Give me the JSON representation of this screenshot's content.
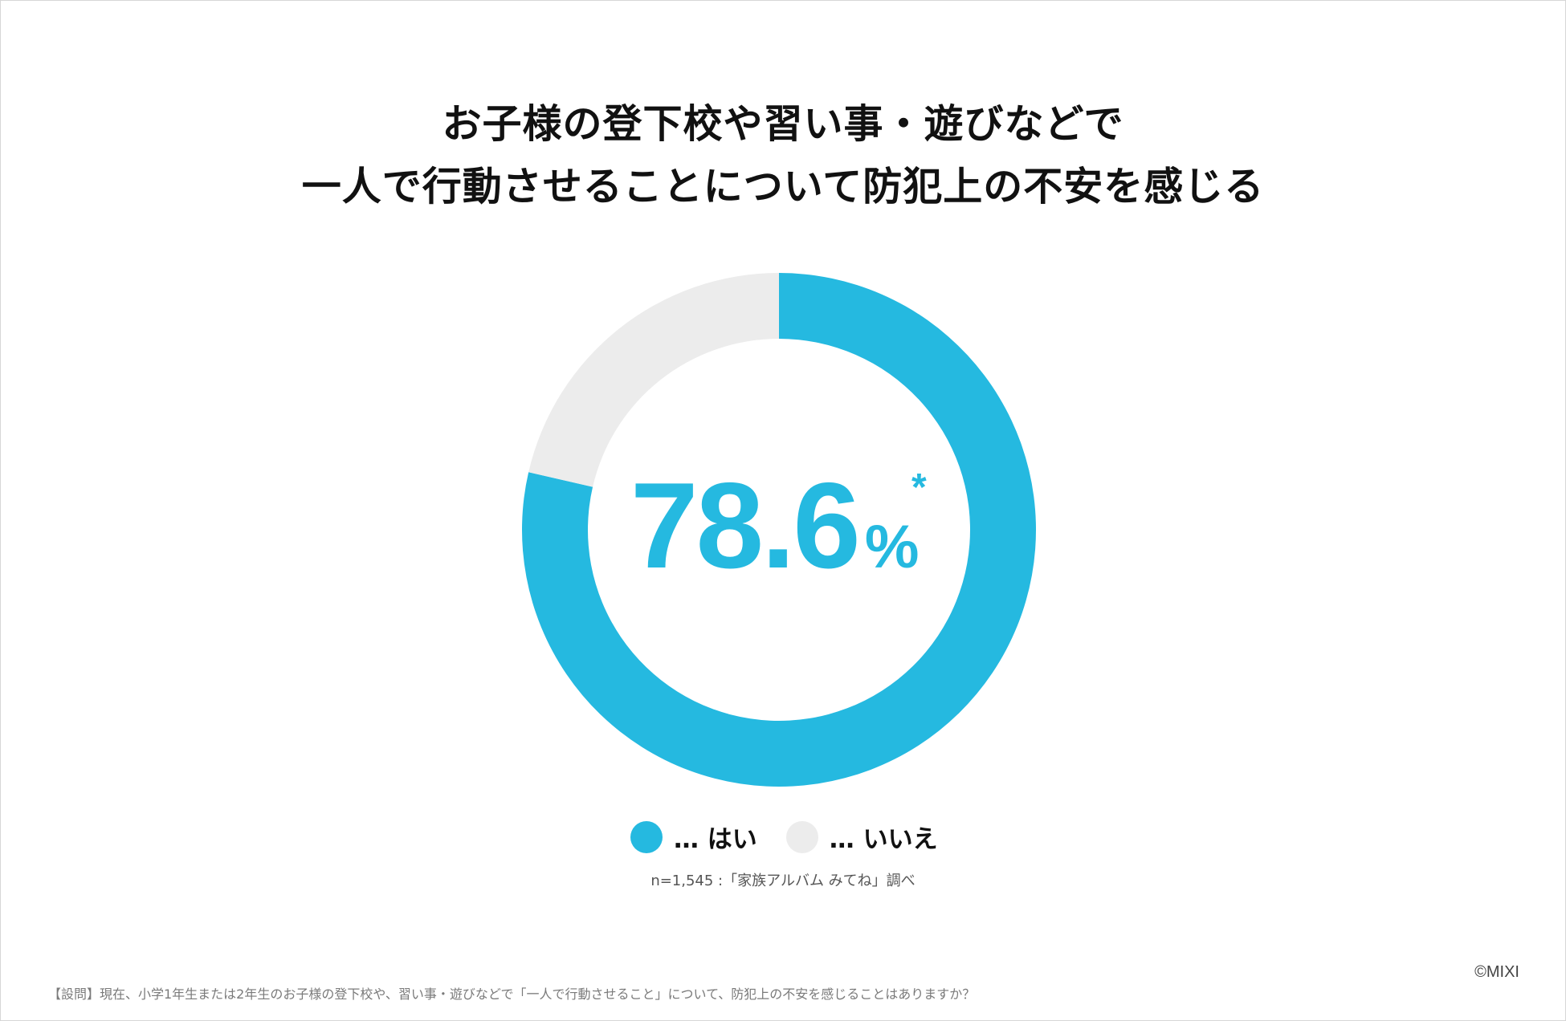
{
  "title_line1": "お子様の登下校や習い事・遊びなどで",
  "title_line2": "一人で行動させることについて防犯上の不安を感じる",
  "chart_data": {
    "type": "pie",
    "categories": [
      "はい",
      "いいえ"
    ],
    "values": [
      78.6,
      21.4
    ],
    "unit": "%",
    "colors": [
      "#25b9e0",
      "#ececec"
    ],
    "start": "top",
    "direction": "clockwise",
    "donut": true
  },
  "center_value": "78.6",
  "center_unit": "%",
  "center_mark": "*",
  "legend": [
    {
      "label": "… はい",
      "color": "#25b9e0"
    },
    {
      "label": "… いいえ",
      "color": "#ececec"
    }
  ],
  "source": "n=1,545 :「家族アルバム みてね」調べ",
  "copyright": "©MIXI",
  "footnote": "【設問】現在、小学1年生または2年生のお子様の登下校や、習い事・遊びなどで「一人で行動させること」について、防犯上の不安を感じることはありますか？"
}
